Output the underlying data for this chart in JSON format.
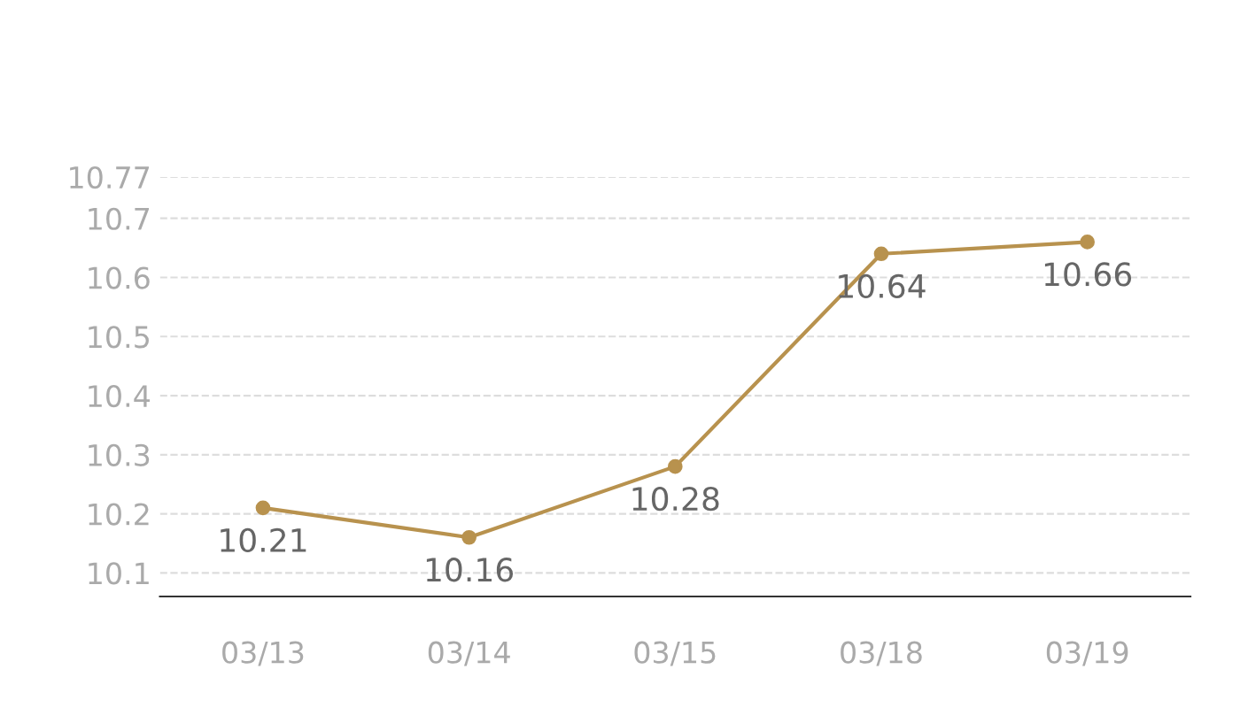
{
  "chart_data": {
    "type": "line",
    "categories": [
      "03/13",
      "03/14",
      "03/15",
      "03/18",
      "03/19"
    ],
    "series": [
      {
        "color": "#b8924e",
        "values": [
          10.21,
          10.16,
          10.28,
          10.64,
          10.66
        ]
      }
    ],
    "ylim": [
      10.06,
      10.77
    ],
    "yticks": [
      10.1,
      10.2,
      10.3,
      10.4,
      10.5,
      10.6,
      10.7,
      10.77
    ],
    "grid": "y",
    "marker": "circle",
    "line_style": "solid",
    "data_labels": true
  }
}
